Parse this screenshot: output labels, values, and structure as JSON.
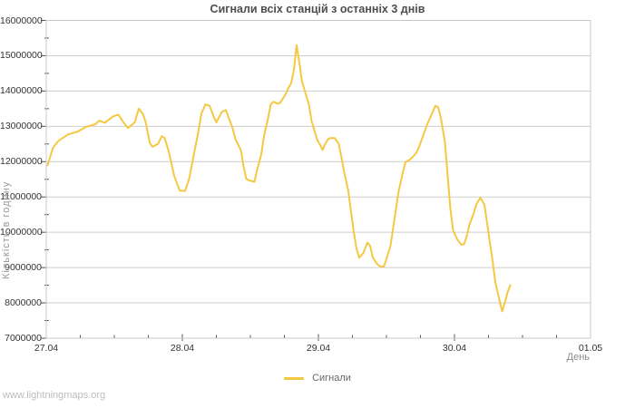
{
  "page": {
    "background": "#ffffff"
  },
  "watermark": "www.lightningmaps.org",
  "chart_data": {
    "type": "line",
    "title": "Сигнали всіх станцій з останніх 3 днів",
    "xlabel": "День",
    "ylabel": "Кількість в годину",
    "grid": {
      "horizontal": true,
      "vertical": false,
      "color": "#cdcdcd"
    },
    "frame_color": "#c9c9c9",
    "tick_color": "#555555",
    "legend": {
      "position": "bottom-center",
      "entries": [
        {
          "label": "Сигнали",
          "color": "#f5c842"
        }
      ]
    },
    "x_axis": {
      "range_days": [
        0,
        4
      ],
      "tick_days": [
        0,
        1,
        2,
        3,
        4
      ],
      "tick_labels": [
        "27.04",
        "28.04",
        "29.04",
        "30.04",
        "01.05"
      ],
      "minor_tick_step_days": 0.25
    },
    "y_axis": {
      "range": [
        7000000,
        16000000
      ],
      "tick_values": [
        7000000,
        8000000,
        9000000,
        10000000,
        11000000,
        12000000,
        13000000,
        14000000,
        15000000,
        16000000
      ],
      "minor_tick_step": 500000
    },
    "series": [
      {
        "name": "Сигнали",
        "color": "#f5c842",
        "points": [
          [
            0.01,
            11900000
          ],
          [
            0.05,
            12400000
          ],
          [
            0.09,
            12590000
          ],
          [
            0.16,
            12770000
          ],
          [
            0.23,
            12850000
          ],
          [
            0.29,
            12980000
          ],
          [
            0.36,
            13060000
          ],
          [
            0.39,
            13160000
          ],
          [
            0.43,
            13100000
          ],
          [
            0.49,
            13280000
          ],
          [
            0.53,
            13330000
          ],
          [
            0.57,
            13100000
          ],
          [
            0.6,
            12950000
          ],
          [
            0.65,
            13110000
          ],
          [
            0.68,
            13500000
          ],
          [
            0.71,
            13350000
          ],
          [
            0.73,
            13130000
          ],
          [
            0.76,
            12540000
          ],
          [
            0.78,
            12420000
          ],
          [
            0.82,
            12500000
          ],
          [
            0.85,
            12720000
          ],
          [
            0.87,
            12670000
          ],
          [
            0.9,
            12290000
          ],
          [
            0.94,
            11600000
          ],
          [
            0.98,
            11180000
          ],
          [
            1.02,
            11170000
          ],
          [
            1.05,
            11510000
          ],
          [
            1.08,
            12110000
          ],
          [
            1.12,
            12890000
          ],
          [
            1.14,
            13360000
          ],
          [
            1.17,
            13620000
          ],
          [
            1.2,
            13580000
          ],
          [
            1.23,
            13280000
          ],
          [
            1.25,
            13110000
          ],
          [
            1.29,
            13410000
          ],
          [
            1.32,
            13460000
          ],
          [
            1.35,
            13150000
          ],
          [
            1.37,
            12940000
          ],
          [
            1.39,
            12640000
          ],
          [
            1.43,
            12330000
          ],
          [
            1.45,
            11860000
          ],
          [
            1.47,
            11510000
          ],
          [
            1.49,
            11470000
          ],
          [
            1.53,
            11430000
          ],
          [
            1.55,
            11770000
          ],
          [
            1.58,
            12200000
          ],
          [
            1.6,
            12720000
          ],
          [
            1.63,
            13230000
          ],
          [
            1.65,
            13620000
          ],
          [
            1.67,
            13700000
          ],
          [
            1.7,
            13640000
          ],
          [
            1.72,
            13670000
          ],
          [
            1.74,
            13790000
          ],
          [
            1.76,
            13920000
          ],
          [
            1.78,
            14090000
          ],
          [
            1.8,
            14220000
          ],
          [
            1.82,
            14600000
          ],
          [
            1.84,
            15300000
          ],
          [
            1.86,
            14800000
          ],
          [
            1.88,
            14260000
          ],
          [
            1.9,
            14000000
          ],
          [
            1.93,
            13620000
          ],
          [
            1.95,
            13150000
          ],
          [
            1.97,
            12890000
          ],
          [
            1.99,
            12630000
          ],
          [
            2.02,
            12420000
          ],
          [
            2.03,
            12330000
          ],
          [
            2.05,
            12500000
          ],
          [
            2.07,
            12630000
          ],
          [
            2.09,
            12670000
          ],
          [
            2.12,
            12670000
          ],
          [
            2.15,
            12500000
          ],
          [
            2.17,
            12110000
          ],
          [
            2.19,
            11690000
          ],
          [
            2.22,
            11170000
          ],
          [
            2.24,
            10570000
          ],
          [
            2.26,
            10010000
          ],
          [
            2.28,
            9540000
          ],
          [
            2.3,
            9280000
          ],
          [
            2.33,
            9410000
          ],
          [
            2.36,
            9710000
          ],
          [
            2.38,
            9620000
          ],
          [
            2.4,
            9280000
          ],
          [
            2.43,
            9110000
          ],
          [
            2.45,
            9040000
          ],
          [
            2.48,
            9020000
          ],
          [
            2.5,
            9240000
          ],
          [
            2.53,
            9620000
          ],
          [
            2.55,
            10140000
          ],
          [
            2.57,
            10660000
          ],
          [
            2.59,
            11170000
          ],
          [
            2.62,
            11690000
          ],
          [
            2.64,
            11990000
          ],
          [
            2.67,
            12050000
          ],
          [
            2.69,
            12120000
          ],
          [
            2.72,
            12250000
          ],
          [
            2.74,
            12420000
          ],
          [
            2.76,
            12630000
          ],
          [
            2.78,
            12850000
          ],
          [
            2.8,
            13060000
          ],
          [
            2.83,
            13320000
          ],
          [
            2.86,
            13580000
          ],
          [
            2.88,
            13540000
          ],
          [
            2.9,
            13240000
          ],
          [
            2.93,
            12550000
          ],
          [
            2.95,
            11600000
          ],
          [
            2.97,
            10660000
          ],
          [
            2.99,
            10050000
          ],
          [
            3.02,
            9800000
          ],
          [
            3.05,
            9650000
          ],
          [
            3.07,
            9660000
          ],
          [
            3.09,
            9880000
          ],
          [
            3.11,
            10220000
          ],
          [
            3.14,
            10520000
          ],
          [
            3.16,
            10780000
          ],
          [
            3.19,
            10980000
          ],
          [
            3.22,
            10780000
          ],
          [
            3.24,
            10260000
          ],
          [
            3.26,
            9710000
          ],
          [
            3.28,
            9190000
          ],
          [
            3.3,
            8590000
          ],
          [
            3.33,
            8080000
          ],
          [
            3.35,
            7760000
          ],
          [
            3.37,
            8000000
          ],
          [
            3.39,
            8300000
          ],
          [
            3.41,
            8500000
          ]
        ]
      }
    ]
  }
}
